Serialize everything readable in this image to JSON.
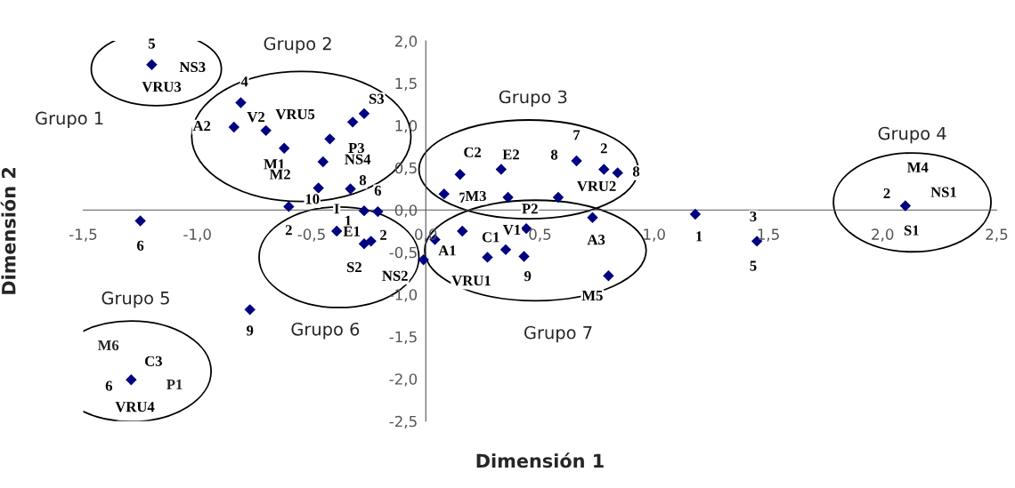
{
  "chart_data": {
    "type": "scatter",
    "xlabel": "Dimensión 1",
    "ylabel": "Dimensión 2",
    "xlim": [
      -1.5,
      2.5
    ],
    "ylim": [
      -2.5,
      2.0
    ],
    "xticks": [
      {
        "value": -1.5,
        "label": "-1,5"
      },
      {
        "value": -1.0,
        "label": "-1,0"
      },
      {
        "value": -0.5,
        "label": "-0,5"
      },
      {
        "value": 0.0,
        "label": "0,0"
      },
      {
        "value": 0.5,
        "label": "0,5"
      },
      {
        "value": 1.0,
        "label": "1,0"
      },
      {
        "value": 1.5,
        "label": "1,5"
      },
      {
        "value": 2.0,
        "label": "2,0"
      },
      {
        "value": 2.5,
        "label": "2,5"
      }
    ],
    "yticks": [
      {
        "value": -2.5,
        "label": "-2,5"
      },
      {
        "value": -2.0,
        "label": "-2,0"
      },
      {
        "value": -1.5,
        "label": "-1,5"
      },
      {
        "value": -1.0,
        "label": "-1,0"
      },
      {
        "value": -0.5,
        "label": "-0,5"
      },
      {
        "value": 0.0,
        "label": "0,0"
      },
      {
        "value": 0.5,
        "label": "0,5"
      },
      {
        "value": 1.0,
        "label": "1,0"
      },
      {
        "value": 1.5,
        "label": "1,5"
      },
      {
        "value": 2.0,
        "label": "2,0"
      }
    ],
    "grid": false,
    "legend": false,
    "marker": "diamond",
    "series": [
      {
        "color": "#000080",
        "x": [
          -1.2,
          -0.81,
          -0.84,
          -0.7,
          -0.62,
          -0.42,
          -0.32,
          -0.27,
          -0.45,
          -0.47,
          -0.33,
          -0.6,
          -0.27,
          -0.21,
          -1.25,
          -0.39,
          -0.27,
          -0.24,
          -0.01,
          0.04,
          0.16,
          -0.77,
          0.35,
          0.27,
          0.43,
          0.44,
          0.73,
          0.8,
          0.08,
          0.15,
          0.33,
          0.36,
          0.58,
          0.66,
          0.78,
          0.84,
          1.18,
          1.45,
          2.1,
          -1.29
        ],
        "values": [
          1.72,
          1.27,
          0.98,
          0.94,
          0.73,
          0.84,
          1.04,
          1.14,
          0.57,
          0.26,
          0.25,
          0.04,
          -0.01,
          -0.02,
          -0.13,
          -0.25,
          -0.4,
          -0.37,
          -0.59,
          -0.35,
          -0.25,
          -1.18,
          -0.47,
          -0.56,
          -0.55,
          -0.22,
          -0.09,
          -0.78,
          0.19,
          0.42,
          0.48,
          0.15,
          0.15,
          0.58,
          0.48,
          0.44,
          -0.05,
          -0.37,
          0.05,
          -2.01
        ]
      }
    ],
    "annotations": [
      "Grupo 1",
      "Grupo 2",
      "Grupo 3",
      "Grupo 4",
      "Grupo 5",
      "Grupo 6",
      "Grupo 7",
      "M6",
      "P1",
      {
        "text": "5",
        "x": -1.2,
        "y": 1.72
      },
      {
        "text": "NS3",
        "x": -1.2,
        "y": 1.72
      },
      {
        "text": "VRU3",
        "x": -1.2,
        "y": 1.72
      },
      {
        "text": "4",
        "x": -0.81,
        "y": 1.27
      },
      {
        "text": "A2",
        "x": -0.84,
        "y": 0.98
      },
      {
        "text": "V2",
        "x": -0.7,
        "y": 0.94
      },
      {
        "text": "VRU5",
        "x": -0.42,
        "y": 0.84
      },
      {
        "text": "S3",
        "x": -0.27,
        "y": 1.14
      },
      {
        "text": "P3",
        "x": -0.32,
        "y": 1.04
      },
      {
        "text": "M1",
        "x": -0.62,
        "y": 0.73
      },
      {
        "text": "NS4",
        "x": -0.45,
        "y": 0.57
      },
      {
        "text": "M2",
        "x": -0.47,
        "y": 0.26
      },
      {
        "text": "10",
        "x": -0.47,
        "y": 0.26
      },
      {
        "text": "8",
        "x": -0.33,
        "y": 0.25
      },
      {
        "text": "6",
        "x": -0.21,
        "y": -0.02
      },
      {
        "text": "6",
        "x": -1.25,
        "y": -0.13
      },
      {
        "text": "2",
        "x": -0.6,
        "y": 0.04
      },
      {
        "text": "I",
        "x": -0.39,
        "y": -0.25
      },
      {
        "text": "1",
        "x": -0.27,
        "y": -0.01
      },
      {
        "text": "E1",
        "x": -0.27,
        "y": -0.4
      },
      {
        "text": "2",
        "x": -0.24,
        "y": -0.37
      },
      {
        "text": "S2",
        "x": -0.27,
        "y": -0.4
      },
      {
        "text": "NS2",
        "x": -0.01,
        "y": -0.59
      },
      {
        "text": "A1",
        "x": 0.04,
        "y": -0.35
      },
      {
        "text": "9",
        "x": -0.77,
        "y": -1.18
      },
      {
        "text": "P2",
        "x": 0.44,
        "y": -0.22
      },
      {
        "text": "C1",
        "x": 0.16,
        "y": -0.25
      },
      {
        "text": "V1",
        "x": 0.35,
        "y": -0.47
      },
      {
        "text": "A3",
        "x": 0.73,
        "y": -0.09
      },
      {
        "text": "VRU1",
        "x": 0.27,
        "y": -0.56
      },
      {
        "text": "9",
        "x": 0.43,
        "y": -0.55
      },
      {
        "text": "M5",
        "x": 0.8,
        "y": -0.78
      },
      {
        "text": "C2",
        "x": 0.15,
        "y": 0.42
      },
      {
        "text": "E2",
        "x": 0.33,
        "y": 0.48
      },
      {
        "text": "8",
        "x": 0.66,
        "y": 0.58
      },
      {
        "text": "7",
        "x": 0.66,
        "y": 0.58
      },
      {
        "text": "2",
        "x": 0.78,
        "y": 0.48
      },
      {
        "text": "8",
        "x": 0.84,
        "y": 0.44
      },
      {
        "text": "7",
        "x": 0.08,
        "y": 0.19
      },
      {
        "text": "M3",
        "x": 0.36,
        "y": 0.15
      },
      {
        "text": "VRU2",
        "x": 0.58,
        "y": 0.15
      },
      {
        "text": "M4",
        "x": 2.1,
        "y": 0.05
      },
      {
        "text": "NS1",
        "x": 2.1,
        "y": 0.05
      },
      {
        "text": "2",
        "x": 2.1,
        "y": 0.05
      },
      {
        "text": "S1",
        "x": 2.1,
        "y": 0.05
      },
      {
        "text": "1",
        "x": 1.18,
        "y": -0.05
      },
      {
        "text": "3",
        "x": 1.45,
        "y": -0.37
      },
      {
        "text": "5",
        "x": 1.45,
        "y": -0.37
      },
      {
        "text": "C3",
        "x": -1.29,
        "y": -2.01
      },
      {
        "text": "6",
        "x": -1.29,
        "y": -2.01
      },
      {
        "text": "VRU4",
        "x": -1.29,
        "y": -2.01
      }
    ]
  }
}
